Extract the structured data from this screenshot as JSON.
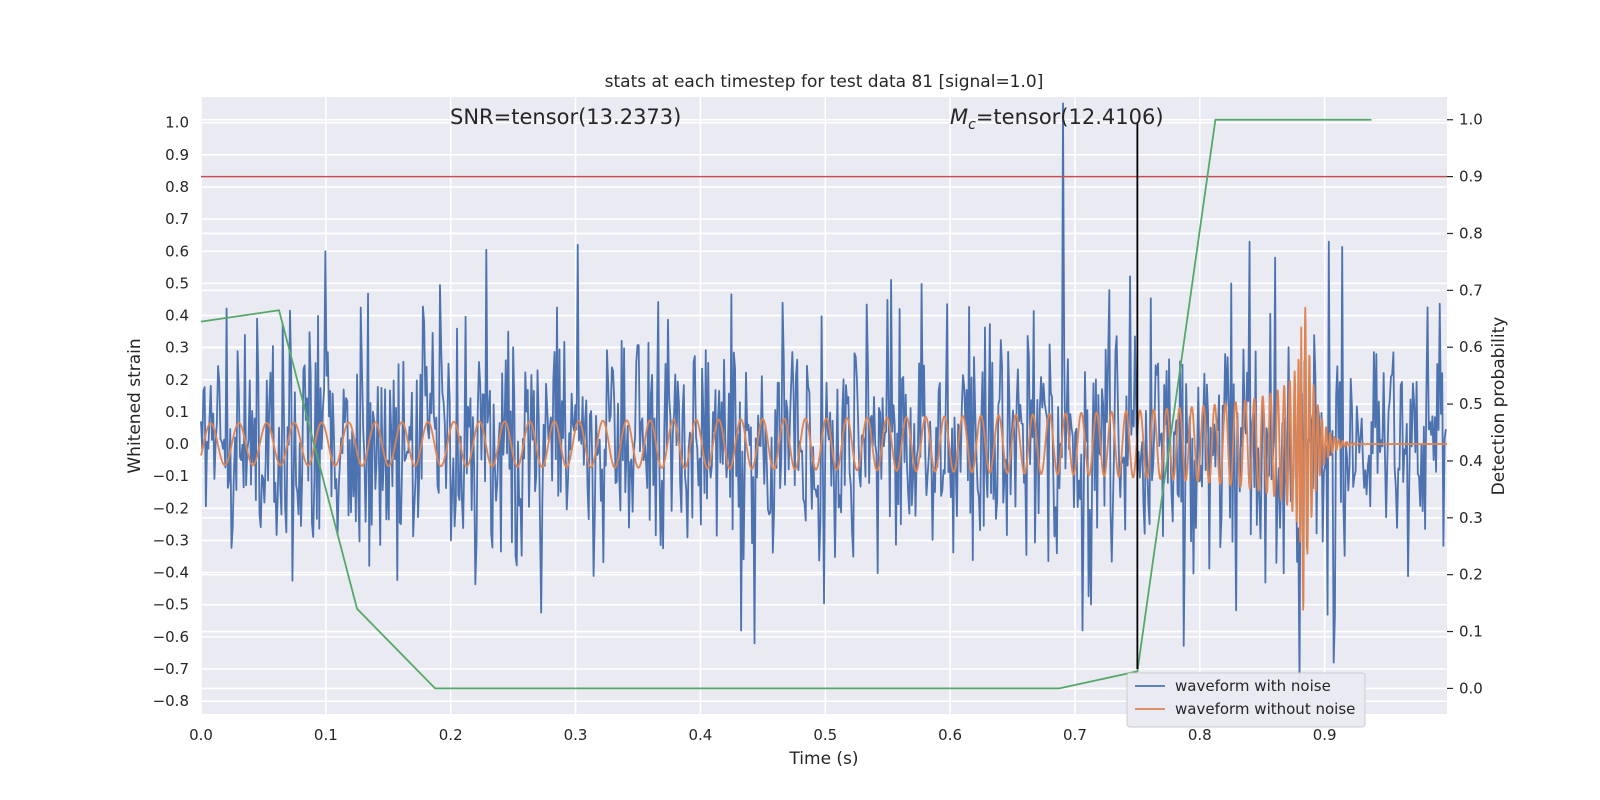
{
  "chart_data": {
    "type": "line",
    "title": "stats at each timestep for test data 81 [signal=1.0]",
    "xlabel": "Time (s)",
    "ylabel": "Whitened strain",
    "y2label": "Detection probability",
    "xlim": [
      0.0,
      0.998
    ],
    "ylim": [
      -0.84,
      1.08
    ],
    "y2lim": [
      -0.045,
      1.04
    ],
    "x_ticks": [
      0.0,
      0.1,
      0.2,
      0.3,
      0.4,
      0.5,
      0.6,
      0.7,
      0.8,
      0.9
    ],
    "x_tick_labels": [
      "0.0",
      "0.1",
      "0.2",
      "0.3",
      "0.4",
      "0.5",
      "0.6",
      "0.7",
      "0.8",
      "0.9"
    ],
    "y_ticks": [
      1.0,
      0.9,
      0.8,
      0.7,
      0.6,
      0.5,
      0.4,
      0.3,
      0.2,
      0.1,
      0.0,
      -0.1,
      -0.2,
      -0.3,
      -0.4,
      -0.5,
      -0.6,
      -0.7,
      -0.8
    ],
    "y_tick_labels": [
      "1.0",
      "0.9",
      "0.8",
      "0.7",
      "0.6",
      "0.5",
      "0.4",
      "0.3",
      "0.2",
      "0.1",
      "0.0",
      "−0.1",
      "−0.2",
      "−0.3",
      "−0.4",
      "−0.5",
      "−0.6",
      "−0.7",
      "−0.8"
    ],
    "y2_ticks": [
      1.0,
      0.9,
      0.8,
      0.7,
      0.6,
      0.5,
      0.4,
      0.3,
      0.2,
      0.1,
      0.0
    ],
    "y2_tick_labels": [
      "1.0",
      "0.9",
      "0.8",
      "0.7",
      "0.6",
      "0.5",
      "0.4",
      "0.3",
      "0.2",
      "0.1",
      "0.0"
    ],
    "grid": true,
    "legend_position": "lower-right",
    "annotations": {
      "snr_text": "SNR=tensor(13.2373)",
      "mc_symbol": "M",
      "mc_subscript": "c",
      "mc_value": "=tensor(12.4106)"
    },
    "threshold_line": {
      "y2": 0.9,
      "color": "#c44e52"
    },
    "marker_line": {
      "x": 0.75,
      "y_from": -0.7,
      "y_to": 1.0,
      "color": "#000000"
    },
    "series": [
      {
        "name": "waveform with noise",
        "color": "#4c72b0",
        "axis": "left",
        "description_kind": "noisy-strain",
        "approx_amplitude_std": 0.19,
        "approx_extremes": [
          {
            "x": 0.1,
            "y": 0.6
          },
          {
            "x": 0.302,
            "y": 0.62
          },
          {
            "x": 0.433,
            "y": -0.58
          },
          {
            "x": 0.443,
            "y": -0.62
          },
          {
            "x": 0.69,
            "y": 1.06
          },
          {
            "x": 0.706,
            "y": -0.58
          },
          {
            "x": 0.825,
            "y": 0.5
          },
          {
            "x": 0.84,
            "y": 0.63
          },
          {
            "x": 0.86,
            "y": 0.58
          },
          {
            "x": 0.88,
            "y": -0.75
          },
          {
            "x": 0.903,
            "y": 0.63
          },
          {
            "x": 0.907,
            "y": -0.68
          }
        ]
      },
      {
        "name": "waveform without noise",
        "color": "#dd8452",
        "axis": "left",
        "description_kind": "chirp",
        "start_frequency_hz": 44,
        "start_amplitude": 0.065,
        "merger_time": 0.882,
        "peak_amplitude": 0.58,
        "ringdown_decay_s": 0.008
      },
      {
        "name": "detection probability",
        "color": "#55a868",
        "axis": "right",
        "x": [
          0.0,
          0.0625,
          0.125,
          0.1875,
          0.25,
          0.6875,
          0.75,
          0.8125,
          0.9375
        ],
        "y": [
          0.645,
          0.665,
          0.14,
          0.0,
          0.0,
          0.0,
          0.03,
          1.0,
          1.0
        ]
      }
    ]
  }
}
